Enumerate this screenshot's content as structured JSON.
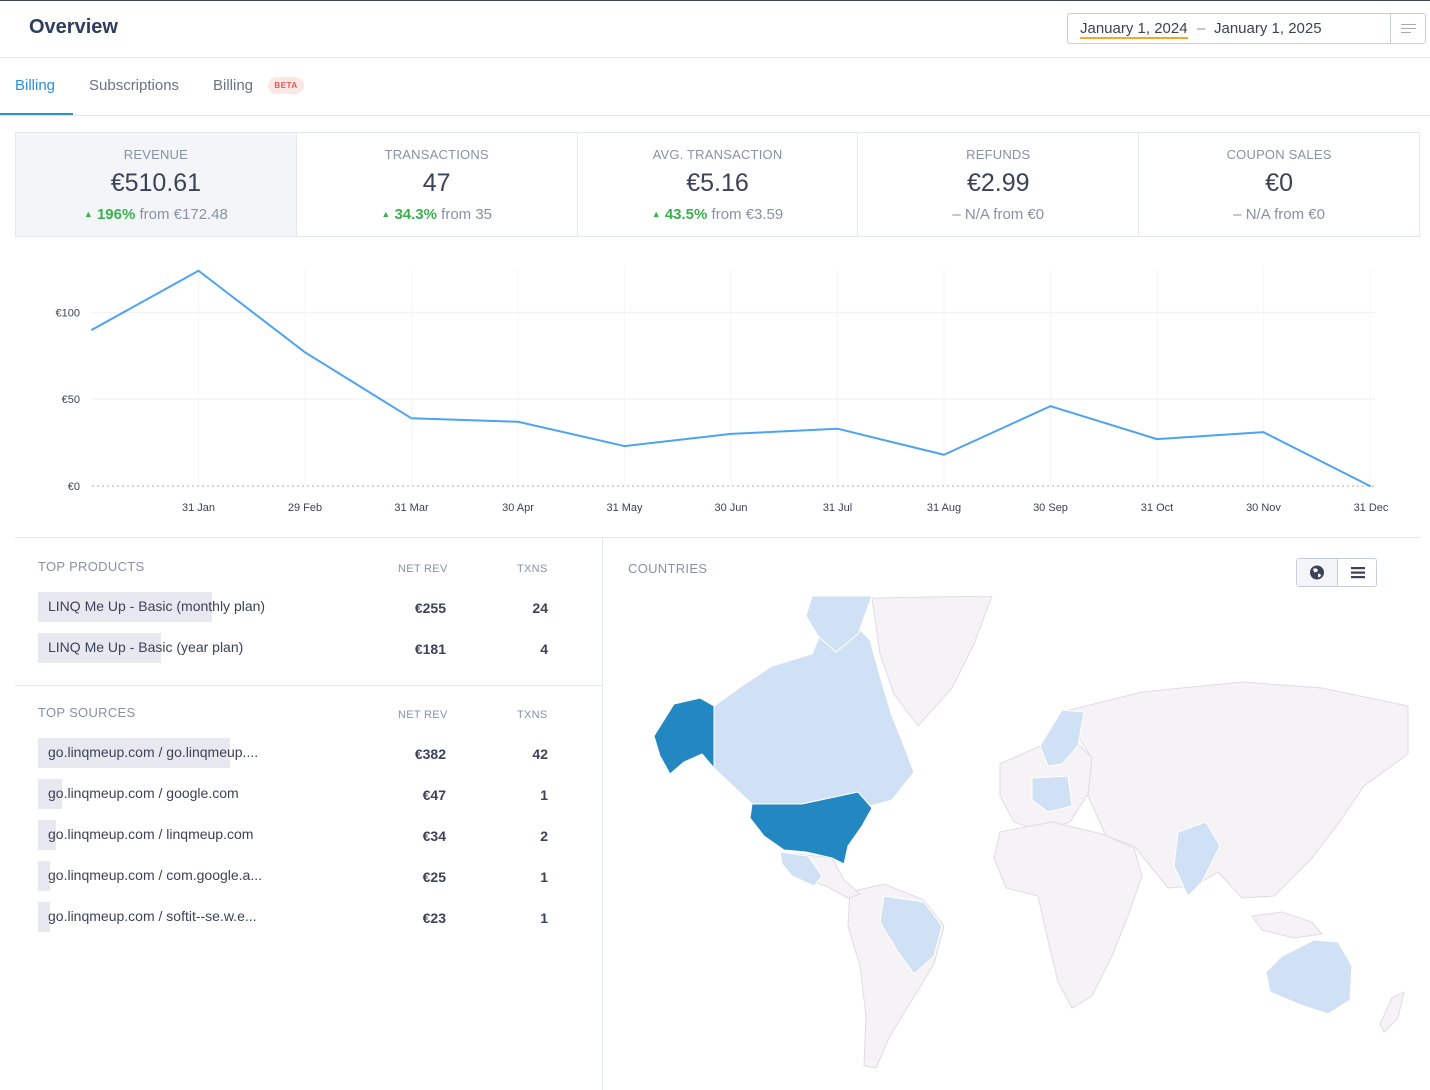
{
  "header": {
    "title": "Overview",
    "date_start": "January 1, 2024",
    "date_sep": "–",
    "date_end": "January 1, 2025"
  },
  "tabs": [
    {
      "label": "Billing",
      "active": true
    },
    {
      "label": "Subscriptions",
      "active": false
    },
    {
      "label": "Billing",
      "badge": "BETA",
      "active": false
    }
  ],
  "kpis": [
    {
      "label": "REVENUE",
      "value": "€510.61",
      "change": "196%",
      "from": "from €172.48",
      "direction": "up"
    },
    {
      "label": "TRANSACTIONS",
      "value": "47",
      "change": "34.3%",
      "from": "from 35",
      "direction": "up"
    },
    {
      "label": "AVG. TRANSACTION",
      "value": "€5.16",
      "change": "43.5%",
      "from": "from €3.59",
      "direction": "up"
    },
    {
      "label": "REFUNDS",
      "value": "€2.99",
      "change": "– N/A",
      "from": "from €0",
      "direction": "none"
    },
    {
      "label": "COUPON SALES",
      "value": "€0",
      "change": "– N/A",
      "from": "from €0",
      "direction": "none"
    }
  ],
  "chart_data": {
    "type": "line",
    "x": [
      "1 Jan",
      "31 Jan",
      "29 Feb",
      "31 Mar",
      "30 Apr",
      "31 May",
      "30 Jun",
      "31 Jul",
      "31 Aug",
      "30 Sep",
      "31 Oct",
      "30 Nov",
      "31 Dec"
    ],
    "x_tick_labels": [
      "31 Jan",
      "29 Feb",
      "31 Mar",
      "30 Apr",
      "31 May",
      "30 Jun",
      "31 Jul",
      "31 Aug",
      "30 Sep",
      "31 Oct",
      "30 Nov",
      "31 Dec"
    ],
    "series": [
      {
        "values": [
          90,
          124,
          77,
          39,
          37,
          23,
          30,
          33,
          18,
          46,
          27,
          31,
          0
        ],
        "color": "#4ea3f1"
      }
    ],
    "y_ticks": [
      "€0",
      "€50",
      "€100"
    ],
    "ylim": [
      0,
      125
    ],
    "grid": true
  },
  "top_products": {
    "title": "TOP PRODUCTS",
    "col_rev": "NET REV",
    "col_txns": "TXNS",
    "rows": [
      {
        "name": "LINQ Me Up - Basic (monthly plan)",
        "rev": "€255",
        "txns": "24",
        "share": 0.58
      },
      {
        "name": "LINQ Me Up - Basic (year plan)",
        "rev": "€181",
        "txns": "4",
        "share": 0.41
      }
    ]
  },
  "top_sources": {
    "title": "TOP SOURCES",
    "col_rev": "NET REV",
    "col_txns": "TXNS",
    "rows": [
      {
        "name": "go.linqmeup.com / go.linqmeup....",
        "rev": "€382",
        "txns": "42",
        "share": 0.64
      },
      {
        "name": "go.linqmeup.com / google.com",
        "rev": "€47",
        "txns": "1",
        "share": 0.08
      },
      {
        "name": "go.linqmeup.com / linqmeup.com",
        "rev": "€34",
        "txns": "2",
        "share": 0.06
      },
      {
        "name": "go.linqmeup.com / com.google.a...",
        "rev": "€25",
        "txns": "1",
        "share": 0.04
      },
      {
        "name": "go.linqmeup.com / softit--se.w.e...",
        "rev": "€23",
        "txns": "1",
        "share": 0.04
      }
    ]
  },
  "countries": {
    "title": "COUNTRIES",
    "color_top": "#2388c2",
    "color_mid": "#d0e1f5",
    "color_base": "#f6f3f7"
  },
  "icons": {
    "date_menu": "list-icon",
    "globe": "globe-icon",
    "list": "hamburger-icon"
  }
}
